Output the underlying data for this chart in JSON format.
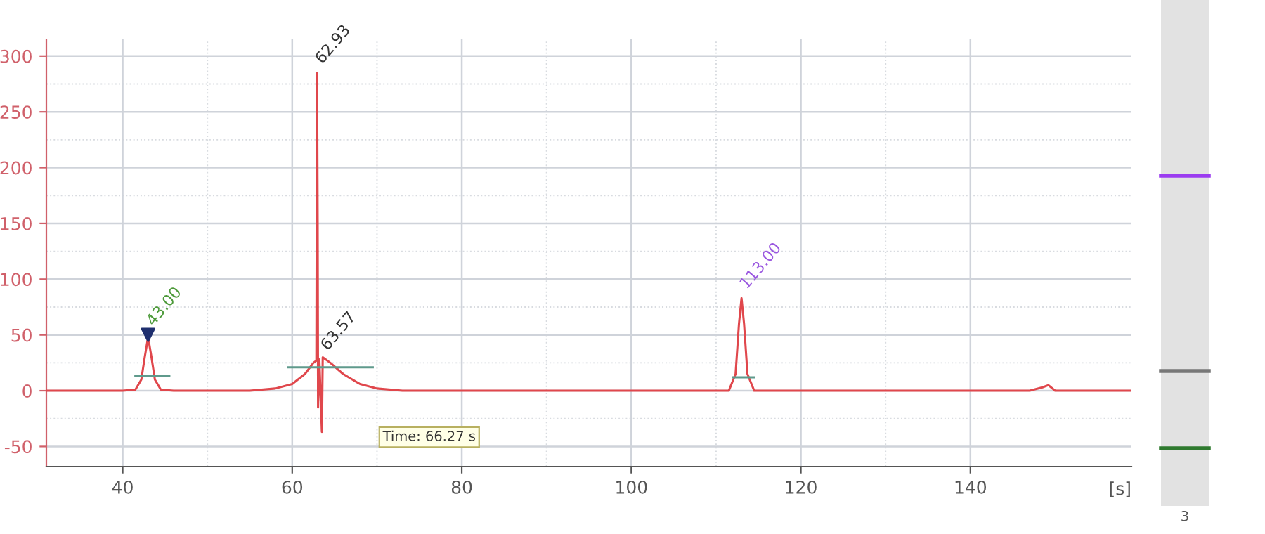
{
  "chart_data": {
    "type": "line",
    "xlabel": "[s]",
    "series": [
      {
        "color": "#e0474c",
        "x": [
          31,
          40,
          41.5,
          42.2,
          42.6,
          43,
          43.4,
          43.8,
          44.5,
          46,
          55,
          58,
          60,
          61.5,
          62.5,
          62.85,
          62.93,
          63.0,
          63.05,
          63.2,
          63.5,
          63.6,
          64.5,
          66,
          68,
          70,
          73,
          111.5,
          112.3,
          112.7,
          113,
          113.3,
          113.7,
          114.5,
          147,
          148.5,
          149.2,
          150,
          159
        ],
        "values": [
          0,
          0,
          1,
          10,
          30,
          48,
          30,
          10,
          1,
          0,
          0,
          2,
          6,
          15,
          25,
          27,
          285,
          150,
          -15,
          28,
          -37,
          30,
          25,
          15,
          6,
          2,
          0,
          0,
          15,
          60,
          83,
          60,
          15,
          0,
          0,
          3,
          5,
          0,
          0
        ]
      },
      {
        "color": "#5f9a8c",
        "x": [
          41.5,
          45.5
        ],
        "values": [
          13,
          13
        ]
      },
      {
        "color": "#5f9a8c",
        "x": [
          59.5,
          69.5
        ],
        "values": [
          21,
          21
        ]
      },
      {
        "color": "#5f9a8c",
        "x": [
          112,
          114.5
        ],
        "values": [
          12,
          12
        ]
      },
      {
        "type": "scatter",
        "marker": "triangle",
        "color": "#1f2f6e",
        "x": [
          43
        ],
        "values": [
          50
        ]
      }
    ],
    "annotations": [
      {
        "text": "43.00",
        "x": 43,
        "y": 52
      },
      {
        "text": "62.93",
        "x": 62.93,
        "y": 287
      },
      {
        "text": "63.57",
        "x": 63.57,
        "y": 30
      },
      {
        "text": "113.00",
        "x": 113,
        "y": 85
      },
      "Time: 66.27 s",
      "3"
    ],
    "xlim": [
      31,
      159
    ],
    "ylim": [
      -68,
      315
    ],
    "xticks": [
      40,
      60,
      80,
      100,
      120,
      140
    ],
    "yticks": [
      -50,
      0,
      50,
      100,
      150,
      200,
      250,
      300
    ],
    "grid": true
  }
}
